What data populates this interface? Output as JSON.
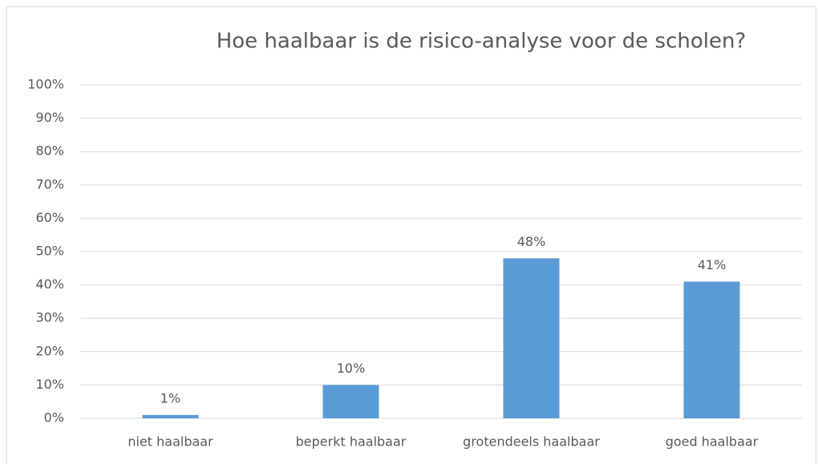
{
  "chart_data": {
    "type": "bar",
    "title": "Hoe haalbaar is de risico-analyse voor de scholen?",
    "categories": [
      "niet haalbaar",
      "beperkt haalbaar",
      "grotendeels haalbaar",
      "goed haalbaar"
    ],
    "values": [
      1,
      10,
      48,
      41
    ],
    "value_labels": [
      "1%",
      "10%",
      "48%",
      "41%"
    ],
    "color": "#5b9bd5",
    "ylim": [
      0,
      100
    ],
    "yticks": [
      {
        "value": 0,
        "label": "0%"
      },
      {
        "value": 10,
        "label": "10%"
      },
      {
        "value": 20,
        "label": "20%"
      },
      {
        "value": 30,
        "label": "30%"
      },
      {
        "value": 40,
        "label": "40%"
      },
      {
        "value": 50,
        "label": "50%"
      },
      {
        "value": 60,
        "label": "60%"
      },
      {
        "value": 70,
        "label": "70%"
      },
      {
        "value": 80,
        "label": "80%"
      },
      {
        "value": 90,
        "label": "90%"
      },
      {
        "value": 100,
        "label": "100%"
      }
    ],
    "grid": true
  }
}
